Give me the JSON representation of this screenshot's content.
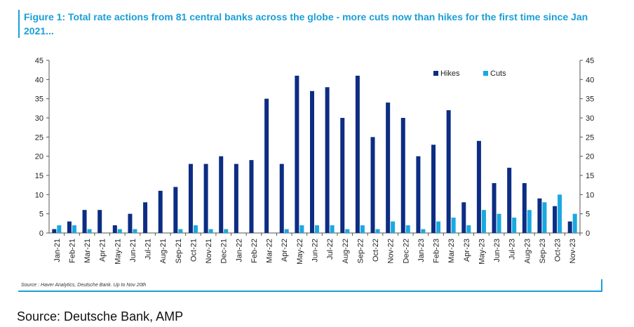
{
  "title": "Figure 1: Total rate actions from 81 central banks across the globe - more cuts now than hikes for the first time since Jan 2021...",
  "chart_source": "Source : Haver Analytics, Deutsche Bank. Up to Nov 20th",
  "footer_source": "Source: Deutsche Bank, AMP",
  "colors": {
    "hikes": "#0c2d83",
    "cuts": "#1ba8e0",
    "accent": "#1a9fd6"
  },
  "chart_data": {
    "type": "bar",
    "title": "Figure 1: Total rate actions from 81 central banks across the globe - more cuts now than hikes for the first time since Jan 2021...",
    "xlabel": "",
    "ylabel": "",
    "ylim": [
      0,
      45
    ],
    "yticks": [
      0,
      5,
      10,
      15,
      20,
      25,
      30,
      35,
      40,
      45
    ],
    "legend_position": "top-right",
    "categories": [
      "Jan-21",
      "Feb-21",
      "Mar-21",
      "Apr-21",
      "May-21",
      "Jun-21",
      "Jul-21",
      "Aug-21",
      "Sep-21",
      "Oct-21",
      "Nov-21",
      "Dec-21",
      "Jan-22",
      "Feb-22",
      "Mar-22",
      "Apr-22",
      "May-22",
      "Jun-22",
      "Jul-22",
      "Aug-22",
      "Sep-22",
      "Oct-22",
      "Nov-22",
      "Dec-22",
      "Jan-23",
      "Feb-23",
      "Mar-23",
      "Apr-23",
      "May-23",
      "Jun-23",
      "Jul-23",
      "Aug-23",
      "Sep-23",
      "Oct-23",
      "Nov-23"
    ],
    "series": [
      {
        "name": "Hikes",
        "values": [
          1,
          3,
          6,
          6,
          2,
          5,
          8,
          11,
          12,
          18,
          18,
          20,
          18,
          19,
          35,
          18,
          41,
          37,
          38,
          30,
          41,
          25,
          34,
          30,
          20,
          23,
          32,
          8,
          24,
          13,
          17,
          13,
          9,
          7,
          3
        ]
      },
      {
        "name": "Cuts",
        "values": [
          2,
          2,
          1,
          0,
          1,
          1,
          0,
          0,
          1,
          2,
          1,
          1,
          0,
          0,
          0,
          1,
          2,
          2,
          2,
          1,
          2,
          1,
          3,
          2,
          1,
          3,
          4,
          2,
          6,
          5,
          4,
          6,
          8,
          10,
          5
        ]
      }
    ]
  }
}
